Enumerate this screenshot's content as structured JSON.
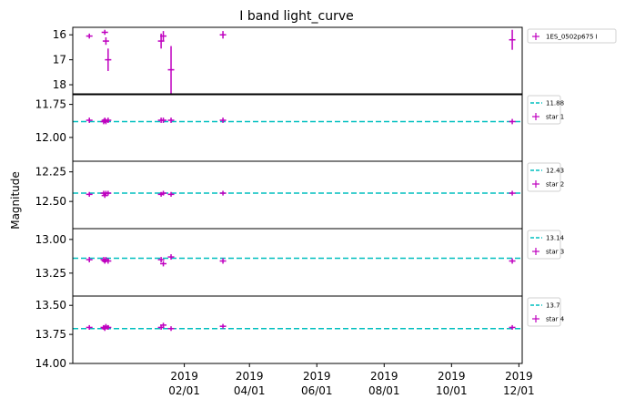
{
  "chart_data": {
    "type": "scatter",
    "title": "I band light_curve",
    "ylabel": "Magnitude",
    "xlabel": "",
    "x_tick_labels": [
      {
        "date": "2019-02-01",
        "year": "2019",
        "md": "02/01"
      },
      {
        "date": "2019-04-01",
        "year": "2019",
        "md": "04/01"
      },
      {
        "date": "2019-06-01",
        "year": "2019",
        "md": "06/01"
      },
      {
        "date": "2019-08-01",
        "year": "2019",
        "md": "08/01"
      },
      {
        "date": "2019-10-01",
        "year": "2019",
        "md": "10/01"
      },
      {
        "date": "2019-12-01",
        "year": "2019",
        "md": "12/01"
      }
    ],
    "x_range": [
      "2018-10-23",
      "2019-12-04"
    ],
    "colors": {
      "points": "#bf00bf",
      "reference_line": "#00bfbf"
    },
    "panels": [
      {
        "series_name": "1ES_0502p675 I",
        "ylim": [
          18.4,
          15.7
        ],
        "yticks": [
          16,
          17,
          18
        ],
        "y_tick_labels": [
          "16",
          "17",
          "18"
        ],
        "reference": null,
        "points": [
          {
            "date": "2018-11-07",
            "y": 16.05,
            "err": 0.1
          },
          {
            "date": "2018-11-21",
            "y": 15.9,
            "err": 0.1
          },
          {
            "date": "2018-11-22",
            "y": 16.25,
            "err": 0.15
          },
          {
            "date": "2018-11-24",
            "y": 17.0,
            "err": 0.45
          },
          {
            "date": "2019-01-11",
            "y": 16.25,
            "err": 0.3
          },
          {
            "date": "2019-01-13",
            "y": 16.05,
            "err": 0.2
          },
          {
            "date": "2019-01-20",
            "y": 17.4,
            "err": 0.95
          },
          {
            "date": "2019-03-08",
            "y": 16.0,
            "err": 0.15
          },
          {
            "date": "2019-11-25",
            "y": 16.2,
            "err": 0.4
          }
        ]
      },
      {
        "series_name": "star 1",
        "reference_label": "11.88",
        "reference": 11.88,
        "ylim": [
          12.18,
          11.67
        ],
        "yticks": [
          11.75,
          12.0
        ],
        "y_tick_labels": [
          "11.75",
          "12.00"
        ],
        "points": [
          {
            "date": "2018-11-07",
            "y": 11.87,
            "err": 0.02
          },
          {
            "date": "2018-11-20",
            "y": 11.88,
            "err": 0.02
          },
          {
            "date": "2018-11-21",
            "y": 11.87,
            "err": 0.02
          },
          {
            "date": "2018-11-22",
            "y": 11.88,
            "err": 0.02
          },
          {
            "date": "2018-11-24",
            "y": 11.87,
            "err": 0.02
          },
          {
            "date": "2019-01-11",
            "y": 11.87,
            "err": 0.02
          },
          {
            "date": "2019-01-13",
            "y": 11.87,
            "err": 0.02
          },
          {
            "date": "2019-01-20",
            "y": 11.87,
            "err": 0.02
          },
          {
            "date": "2019-03-08",
            "y": 11.87,
            "err": 0.02
          },
          {
            "date": "2019-11-25",
            "y": 11.88,
            "err": 0.02
          }
        ]
      },
      {
        "series_name": "star 2",
        "reference_label": "12.43",
        "reference": 12.43,
        "ylim": [
          12.73,
          12.16
        ],
        "yticks": [
          12.25,
          12.5
        ],
        "y_tick_labels": [
          "12.25",
          "12.50"
        ],
        "points": [
          {
            "date": "2018-11-07",
            "y": 12.44,
            "err": 0.02
          },
          {
            "date": "2018-11-20",
            "y": 12.43,
            "err": 0.02
          },
          {
            "date": "2018-11-21",
            "y": 12.45,
            "err": 0.02
          },
          {
            "date": "2018-11-22",
            "y": 12.43,
            "err": 0.02
          },
          {
            "date": "2018-11-24",
            "y": 12.43,
            "err": 0.02
          },
          {
            "date": "2019-01-11",
            "y": 12.44,
            "err": 0.02
          },
          {
            "date": "2019-01-13",
            "y": 12.43,
            "err": 0.02
          },
          {
            "date": "2019-01-20",
            "y": 12.44,
            "err": 0.02
          },
          {
            "date": "2019-03-08",
            "y": 12.43,
            "err": 0.02
          },
          {
            "date": "2019-11-25",
            "y": 12.43,
            "err": 0.02
          }
        ]
      },
      {
        "series_name": "star 3",
        "reference_label": "13.14",
        "reference": 13.14,
        "ylim": [
          13.42,
          12.92
        ],
        "yticks": [
          13.0,
          13.25
        ],
        "y_tick_labels": [
          "13.00",
          "13.25"
        ],
        "points": [
          {
            "date": "2018-11-07",
            "y": 13.15,
            "err": 0.02
          },
          {
            "date": "2018-11-20",
            "y": 13.15,
            "err": 0.02
          },
          {
            "date": "2018-11-21",
            "y": 13.16,
            "err": 0.02
          },
          {
            "date": "2018-11-22",
            "y": 13.15,
            "err": 0.02
          },
          {
            "date": "2018-11-24",
            "y": 13.16,
            "err": 0.02
          },
          {
            "date": "2019-01-11",
            "y": 13.15,
            "err": 0.02
          },
          {
            "date": "2019-01-13",
            "y": 13.18,
            "err": 0.02
          },
          {
            "date": "2019-01-20",
            "y": 13.13,
            "err": 0.02
          },
          {
            "date": "2019-03-08",
            "y": 13.16,
            "err": 0.02
          },
          {
            "date": "2019-11-25",
            "y": 13.16,
            "err": 0.02
          }
        ]
      },
      {
        "series_name": "star 4",
        "reference_label": "13.7",
        "reference": 13.7,
        "ylim": [
          14.0,
          13.42
        ],
        "yticks": [
          13.5,
          13.75,
          14.0
        ],
        "y_tick_labels": [
          "13.50",
          "13.75",
          "14.00"
        ],
        "points": [
          {
            "date": "2018-11-07",
            "y": 13.69,
            "err": 0.02
          },
          {
            "date": "2018-11-20",
            "y": 13.69,
            "err": 0.02
          },
          {
            "date": "2018-11-21",
            "y": 13.7,
            "err": 0.02
          },
          {
            "date": "2018-11-22",
            "y": 13.68,
            "err": 0.02
          },
          {
            "date": "2018-11-24",
            "y": 13.69,
            "err": 0.02
          },
          {
            "date": "2019-01-11",
            "y": 13.69,
            "err": 0.02
          },
          {
            "date": "2019-01-13",
            "y": 13.67,
            "err": 0.02
          },
          {
            "date": "2019-01-20",
            "y": 13.7,
            "err": 0.02
          },
          {
            "date": "2019-03-08",
            "y": 13.68,
            "err": 0.02
          },
          {
            "date": "2019-11-25",
            "y": 13.69,
            "err": 0.02
          }
        ]
      }
    ]
  }
}
